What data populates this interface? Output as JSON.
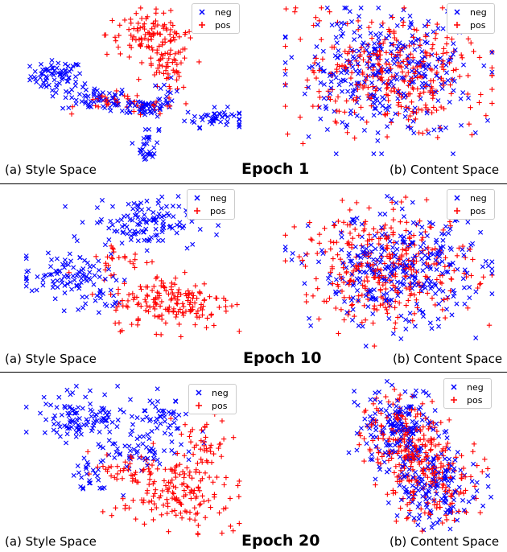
{
  "colors": {
    "neg": "#0000ff",
    "pos": "#ff0000"
  },
  "rows": [
    {
      "epoch_label": "Epoch 1",
      "style_caption": "(a) Style Space",
      "content_caption": "(b) Content Space"
    },
    {
      "epoch_label": "Epoch 10",
      "style_caption": "(a) Style Space",
      "content_caption": "(b) Content Space"
    },
    {
      "epoch_label": "Epoch 20",
      "style_caption": "(a) Style Space",
      "content_caption": "(b) Content Space"
    }
  ],
  "legend": {
    "neg": "neg",
    "pos": "pos"
  },
  "chart_data": [
    {
      "type": "scatter",
      "panel": "Epoch 1 style space",
      "xlim": [
        0,
        100
      ],
      "ylim": [
        0,
        100
      ],
      "series": [
        {
          "name": "neg",
          "marker": "x",
          "clusters": [
            {
              "cx": 15,
              "cy": 55,
              "sx": 6,
              "sy": 5,
              "n": 70
            },
            {
              "cx": 33,
              "cy": 40,
              "sx": 8,
              "sy": 4,
              "n": 60
            },
            {
              "cx": 55,
              "cy": 35,
              "sx": 7,
              "sy": 3,
              "n": 50
            },
            {
              "cx": 88,
              "cy": 28,
              "sx": 7,
              "sy": 3,
              "n": 45
            },
            {
              "cx": 57,
              "cy": 10,
              "sx": 2.5,
              "sy": 6,
              "n": 30
            },
            {
              "cx": 65,
              "cy": 40,
              "sx": 3,
              "sy": 6,
              "n": 15
            }
          ]
        },
        {
          "name": "pos",
          "marker": "+",
          "clusters": [
            {
              "cx": 58,
              "cy": 82,
              "sx": 10,
              "sy": 7,
              "n": 100
            },
            {
              "cx": 66,
              "cy": 60,
              "sx": 5,
              "sy": 8,
              "n": 55
            },
            {
              "cx": 40,
              "cy": 38,
              "sx": 8,
              "sy": 3,
              "n": 25
            },
            {
              "cx": 60,
              "cy": 35,
              "sx": 6,
              "sy": 3,
              "n": 20
            }
          ]
        }
      ]
    },
    {
      "type": "scatter",
      "panel": "Epoch 1 content space",
      "xlim": [
        0,
        100
      ],
      "ylim": [
        0,
        100
      ],
      "series": [
        {
          "name": "neg",
          "marker": "x",
          "clusters": [
            {
              "cx": 50,
              "cy": 55,
              "sx": 22,
              "sy": 20,
              "n": 330
            }
          ]
        },
        {
          "name": "pos",
          "marker": "+",
          "clusters": [
            {
              "cx": 52,
              "cy": 55,
              "sx": 22,
              "sy": 20,
              "n": 330
            }
          ]
        }
      ]
    },
    {
      "type": "scatter",
      "panel": "Epoch 10 style space",
      "xlim": [
        0,
        100
      ],
      "ylim": [
        0,
        100
      ],
      "series": [
        {
          "name": "neg",
          "marker": "x",
          "clusters": [
            {
              "cx": 55,
              "cy": 80,
              "sx": 12,
              "sy": 8,
              "n": 130
            },
            {
              "cx": 20,
              "cy": 45,
              "sx": 10,
              "sy": 7,
              "n": 90
            },
            {
              "cx": 35,
              "cy": 28,
              "sx": 5,
              "sy": 4,
              "n": 20
            }
          ]
        },
        {
          "name": "pos",
          "marker": "+",
          "clusters": [
            {
              "cx": 68,
              "cy": 28,
              "sx": 14,
              "sy": 9,
              "n": 170
            },
            {
              "cx": 45,
              "cy": 55,
              "sx": 8,
              "sy": 6,
              "n": 25
            }
          ]
        }
      ]
    },
    {
      "type": "scatter",
      "panel": "Epoch 10 content space",
      "xlim": [
        0,
        100
      ],
      "ylim": [
        0,
        100
      ],
      "series": [
        {
          "name": "neg",
          "marker": "x",
          "clusters": [
            {
              "cx": 55,
              "cy": 50,
              "sx": 20,
              "sy": 18,
              "n": 330
            }
          ]
        },
        {
          "name": "pos",
          "marker": "+",
          "clusters": [
            {
              "cx": 50,
              "cy": 52,
              "sx": 20,
              "sy": 18,
              "n": 330
            }
          ]
        }
      ]
    },
    {
      "type": "scatter",
      "panel": "Epoch 20 style space",
      "xlim": [
        0,
        100
      ],
      "ylim": [
        0,
        100
      ],
      "series": [
        {
          "name": "neg",
          "marker": "x",
          "clusters": [
            {
              "cx": 28,
              "cy": 78,
              "sx": 12,
              "sy": 8,
              "n": 110
            },
            {
              "cx": 65,
              "cy": 80,
              "sx": 5,
              "sy": 6,
              "n": 40
            },
            {
              "cx": 55,
              "cy": 58,
              "sx": 12,
              "sy": 6,
              "n": 60
            },
            {
              "cx": 32,
              "cy": 40,
              "sx": 5,
              "sy": 6,
              "n": 25
            }
          ]
        },
        {
          "name": "pos",
          "marker": "+",
          "clusters": [
            {
              "cx": 68,
              "cy": 28,
              "sx": 12,
              "sy": 12,
              "n": 150
            },
            {
              "cx": 85,
              "cy": 62,
              "sx": 6,
              "sy": 8,
              "n": 40
            },
            {
              "cx": 50,
              "cy": 42,
              "sx": 10,
              "sy": 5,
              "n": 40
            }
          ]
        }
      ]
    },
    {
      "type": "scatter",
      "panel": "Epoch 20 content space",
      "xlim": [
        0,
        100
      ],
      "ylim": [
        0,
        100
      ],
      "series": [
        {
          "name": "neg",
          "marker": "x",
          "clusters": [
            {
              "cx": 40,
              "cy": 65,
              "sx": 13,
              "sy": 14,
              "n": 180
            },
            {
              "cx": 65,
              "cy": 30,
              "sx": 13,
              "sy": 12,
              "n": 150
            }
          ]
        },
        {
          "name": "pos",
          "marker": "+",
          "clusters": [
            {
              "cx": 42,
              "cy": 62,
              "sx": 13,
              "sy": 14,
              "n": 180
            },
            {
              "cx": 62,
              "cy": 32,
              "sx": 13,
              "sy": 12,
              "n": 150
            }
          ]
        }
      ]
    }
  ]
}
